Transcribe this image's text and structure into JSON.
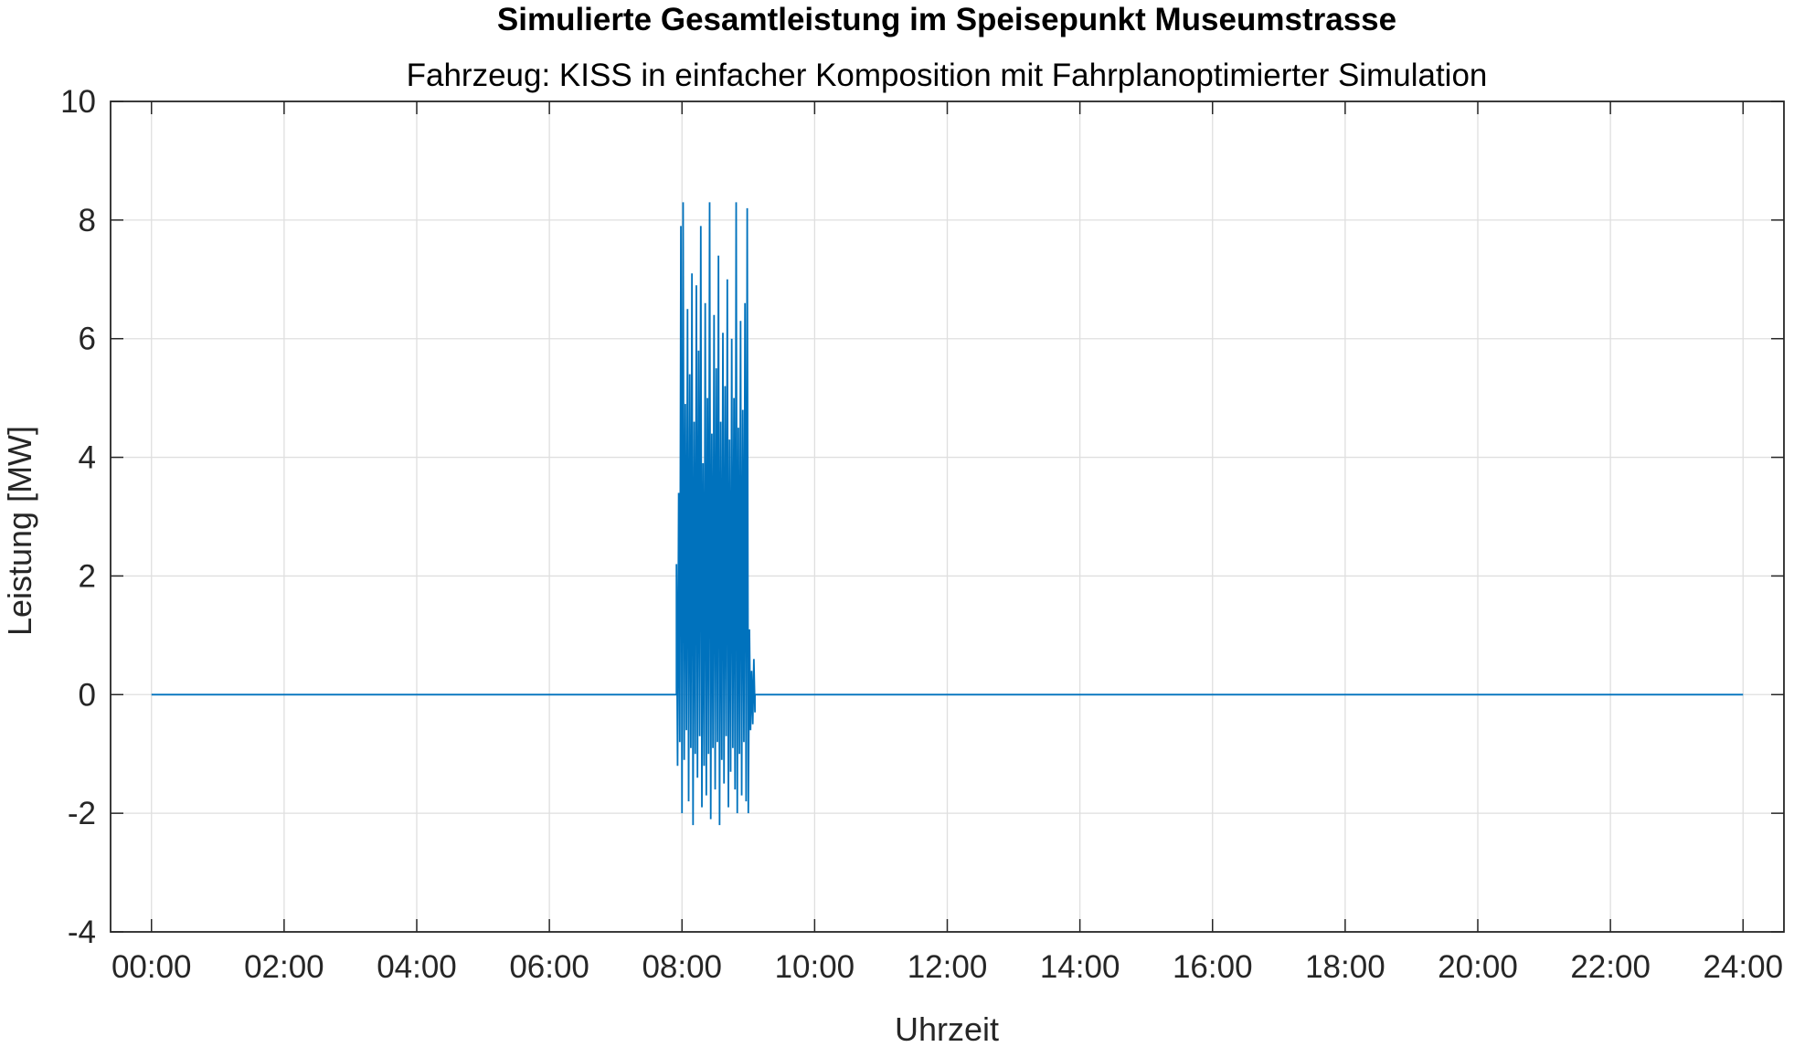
{
  "chart_data": {
    "type": "line",
    "title": "Simulierte Gesamtleistung im Speisepunkt Museumstrasse",
    "subtitle": "Fahrzeug: KISS in einfacher Komposition mit Fahrplanoptimierter Simulation",
    "xlabel": "Uhrzeit",
    "ylabel": "Leistung [MW]",
    "xlim": [
      "-00:37",
      "24:37"
    ],
    "ylim": [
      -4,
      10
    ],
    "x_ticks": [
      "00:00",
      "02:00",
      "04:00",
      "06:00",
      "08:00",
      "10:00",
      "12:00",
      "14:00",
      "16:00",
      "18:00",
      "20:00",
      "22:00",
      "24:00"
    ],
    "y_ticks": [
      "-4",
      "-2",
      "0",
      "2",
      "4",
      "6",
      "8",
      "10"
    ],
    "grid": true,
    "line_color": "#0072BD",
    "series": [
      {
        "x": [
          "00:00",
          "07:55",
          "07:55",
          "07:56",
          "07:57",
          "07:58",
          "07:59",
          "08:00",
          "08:01",
          "08:02",
          "08:03",
          "08:04",
          "08:05",
          "08:06",
          "08:07",
          "08:08",
          "08:09",
          "08:10",
          "08:11",
          "08:12",
          "08:13",
          "08:14",
          "08:15",
          "08:16",
          "08:17",
          "08:18",
          "08:19",
          "08:20",
          "08:21",
          "08:22",
          "08:23",
          "08:24",
          "08:25",
          "08:26",
          "08:27",
          "08:28",
          "08:29",
          "08:30",
          "08:31",
          "08:32",
          "08:33",
          "08:34",
          "08:35",
          "08:36",
          "08:37",
          "08:38",
          "08:39",
          "08:40",
          "08:41",
          "08:42",
          "08:43",
          "08:44",
          "08:45",
          "08:46",
          "08:47",
          "08:48",
          "08:49",
          "08:50",
          "08:51",
          "08:52",
          "08:53",
          "08:54",
          "08:55",
          "08:56",
          "08:57",
          "08:58",
          "08:59",
          "09:00",
          "09:01",
          "09:02",
          "09:03",
          "09:04",
          "09:05",
          "09:06",
          "09:06",
          "24:00"
        ],
        "y": [
          0,
          0,
          2.2,
          -1.2,
          3.4,
          -0.8,
          7.9,
          -2.0,
          8.3,
          -1.1,
          4.9,
          -0.6,
          6.5,
          -1.8,
          5.4,
          -0.9,
          7.1,
          -2.2,
          4.6,
          -1.0,
          6.9,
          -1.4,
          5.8,
          -0.7,
          7.9,
          -1.9,
          3.9,
          -1.2,
          6.6,
          -1.7,
          5.0,
          -1.0,
          8.3,
          -2.1,
          4.4,
          -0.9,
          6.4,
          -1.6,
          5.5,
          -0.8,
          7.4,
          -2.2,
          4.6,
          -1.1,
          6.1,
          -1.5,
          5.2,
          -0.7,
          7.0,
          -1.9,
          4.3,
          -1.3,
          6.0,
          -0.9,
          5.0,
          -1.6,
          8.3,
          -2.0,
          4.5,
          -1.0,
          6.3,
          -1.7,
          4.8,
          -0.8,
          6.6,
          -1.8,
          8.2,
          -2.0,
          1.1,
          -0.6,
          0.4,
          -0.5,
          0.6,
          -0.3,
          0,
          0
        ]
      }
    ]
  }
}
